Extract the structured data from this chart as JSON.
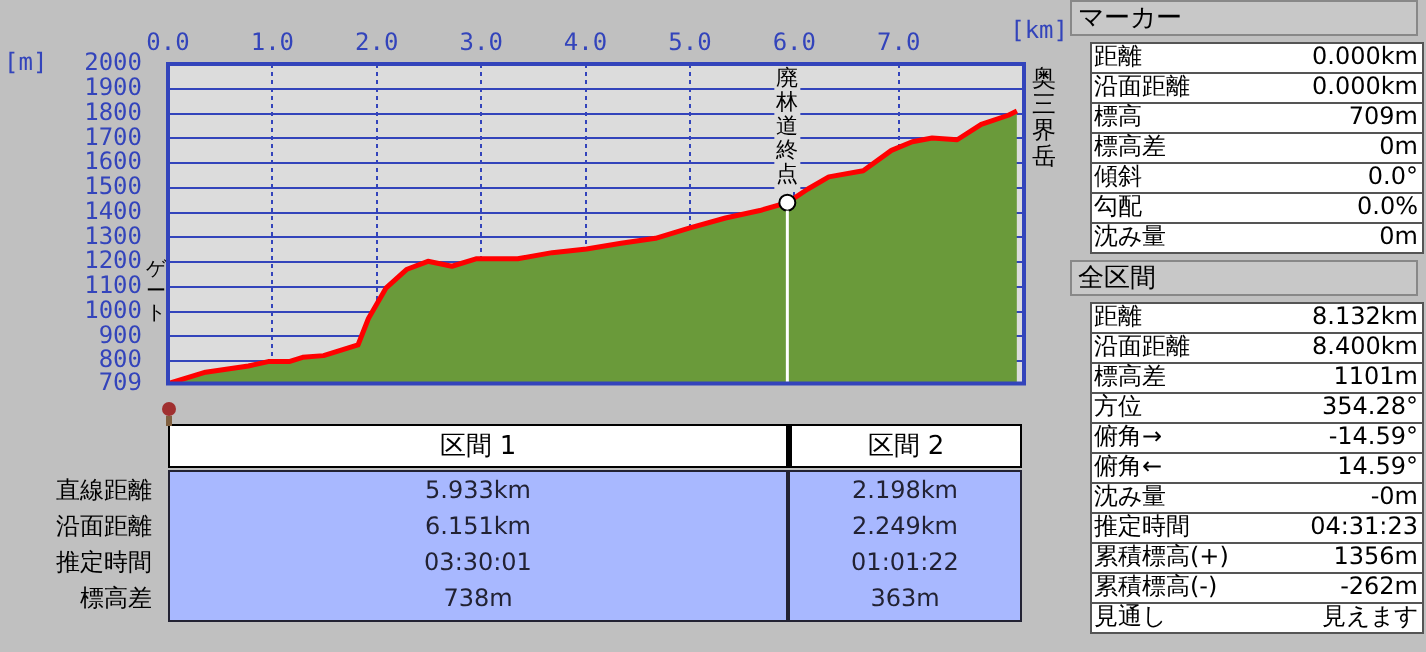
{
  "chart_data": [
    {
      "type": "area",
      "xlabel": "[km]",
      "ylabel": "[m]",
      "x": [
        0,
        0.36,
        0.77,
        0.96,
        1.16,
        1.29,
        1.49,
        1.82,
        1.92,
        2.09,
        2.29,
        2.49,
        2.72,
        2.95,
        3.35,
        3.68,
        4.01,
        4.34,
        4.67,
        5.0,
        5.34,
        5.67,
        5.933,
        6.13,
        6.33,
        6.66,
        6.93,
        7.13,
        7.32,
        7.56,
        7.79,
        8.05,
        8.132
      ],
      "series": [
        {
          "type": "area",
          "color": "#6a9a3a",
          "values": [
            709,
            755,
            780,
            798,
            798,
            815,
            822,
            865,
            972,
            1096,
            1171,
            1203,
            1183,
            1213,
            1213,
            1238,
            1253,
            1276,
            1296,
            1338,
            1378,
            1408,
            1440,
            1495,
            1544,
            1569,
            1651,
            1686,
            1701,
            1694,
            1756,
            1793,
            1810
          ]
        },
        {
          "type": "scatter",
          "color": "#ffffff",
          "x": [
            5.933
          ],
          "values": [
            1440
          ]
        }
      ],
      "xlim": [
        0,
        8.2
      ],
      "xticks": [
        {
          "value": 0,
          "label": "0.0"
        },
        {
          "value": 1,
          "label": "1.0"
        },
        {
          "value": 2,
          "label": "2.0"
        },
        {
          "value": 3,
          "label": "3.0"
        },
        {
          "value": 4,
          "label": "4.0"
        },
        {
          "value": 5,
          "label": "5.0"
        },
        {
          "value": 6,
          "label": "6.0"
        },
        {
          "value": 7,
          "label": "7.0"
        }
      ],
      "ylim": [
        709,
        2000
      ],
      "yticks": [
        709,
        800,
        900,
        1000,
        1100,
        1200,
        1300,
        1400,
        1500,
        1600,
        1700,
        1800,
        1900,
        2000
      ],
      "grid": true,
      "ref_lines": [
        {
          "axis": "x",
          "value": 5.933,
          "label": "廃林道終点",
          "color": "#ffffff"
        }
      ],
      "annotations": [
        "ゲート",
        "奥三界岳"
      ]
    },
    {
      "type": "other",
      "annotations": [
        "区間 1",
        "区間 2",
        "直線距離",
        "5.933km",
        "2.198km",
        "沿面距離",
        "6.151km",
        "2.249km",
        "推定時間",
        "03:30:01",
        "01:01:22",
        "標高差",
        "738m",
        "363m"
      ]
    },
    {
      "type": "other",
      "title": "マーカー",
      "annotations": [
        "距離",
        "0.000km",
        "沿面距離",
        "0.000km",
        "標高",
        "709m",
        "標高差",
        "0m",
        "傾斜",
        "0.0°",
        "勾配",
        "0.0%",
        "沈み量",
        "0m"
      ]
    },
    {
      "type": "other",
      "title": "全区間",
      "annotations": [
        "距離",
        "8.132km",
        "沿面距離",
        "8.400km",
        "標高差",
        "1101m",
        "方位",
        "354.28°",
        "俯角→",
        "-14.59°",
        "俯角←",
        "14.59°",
        "沈み量",
        "-0m",
        "推定時間",
        "04:31:23",
        "累積標高(+)",
        "1356m",
        "累積標高(-)",
        "-262m",
        "見通し",
        "見えます"
      ]
    }
  ]
}
